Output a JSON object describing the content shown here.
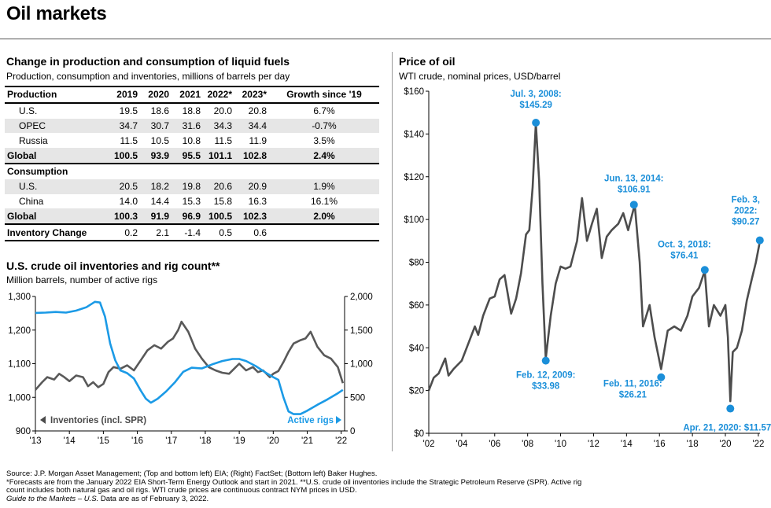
{
  "page": {
    "title": "Oil markets",
    "page_number": ""
  },
  "table_section": {
    "title": "Change in production and consumption of liquid fuels",
    "subtitle": "Production, consumption and inventories, millions of barrels per day",
    "header": [
      "Production",
      "2019",
      "2020",
      "2021",
      "2022*",
      "2023*",
      "Growth since '19"
    ],
    "production_rows": [
      {
        "label": "U.S.",
        "values": [
          "19.5",
          "18.6",
          "18.8",
          "20.0",
          "20.8"
        ],
        "growth": "6.7%"
      },
      {
        "label": "OPEC",
        "values": [
          "34.7",
          "30.7",
          "31.6",
          "34.3",
          "34.4"
        ],
        "growth": "-0.7%"
      },
      {
        "label": "Russia",
        "values": [
          "11.5",
          "10.5",
          "10.8",
          "11.5",
          "11.9"
        ],
        "growth": "3.5%"
      }
    ],
    "production_global": {
      "label": "Global",
      "values": [
        "100.5",
        "93.9",
        "95.5",
        "101.1",
        "102.8"
      ],
      "growth": "2.4%"
    },
    "consumption_label": "Consumption",
    "consumption_rows": [
      {
        "label": "U.S.",
        "values": [
          "20.5",
          "18.2",
          "19.8",
          "20.6",
          "20.9"
        ],
        "growth": "1.9%"
      },
      {
        "label": "China",
        "values": [
          "14.0",
          "14.4",
          "15.3",
          "15.8",
          "16.3"
        ],
        "growth": "16.1%"
      }
    ],
    "consumption_global": {
      "label": "Global",
      "values": [
        "100.3",
        "91.9",
        "96.9",
        "100.5",
        "102.3"
      ],
      "growth": "2.0%"
    },
    "inventory_row": {
      "label": "Inventory Change",
      "values": [
        "0.2",
        "2.1",
        "-1.4",
        "0.5",
        "0.6"
      ],
      "growth": ""
    }
  },
  "inventories_section": {
    "title": "U.S. crude oil inventories and rig count**",
    "subtitle": "Million barrels, number of active rigs",
    "legend_inventories": "Inventories (incl. SPR)",
    "legend_rigs": "Active rigs"
  },
  "price_section": {
    "title": "Price of oil",
    "subtitle": "WTI crude, nominal prices, USD/barrel"
  },
  "colors": {
    "inventories": "#595959",
    "rigs": "#1b9ae6",
    "price": "#4d4d4d",
    "annotation": "#1b8fd9"
  },
  "footer": {
    "line1": "Source: J.P. Morgan Asset Management; (Top and bottom left) EIA; (Right) FactSet; (Bottom left) Baker Hughes.",
    "line2": "*Forecasts are from the January 2022 EIA Short-Term Energy Outlook and start in 2021. **U.S. crude oil inventories include the Strategic Petroleum Reserve (SPR). Active rig",
    "line3": "count includes both natural gas and oil rigs. WTI crude prices are continuous contract NYM prices in USD.",
    "line4_italic": "Guide to the Markets – U.S.",
    "line4_rest": " Data are as of February 3, 2022."
  },
  "chart_data": [
    {
      "type": "line",
      "title": "U.S. crude oil inventories and rig count**",
      "subtitle": "Million barrels, number of active rigs",
      "x_tick_labels": [
        "'13",
        "'14",
        "'15",
        "'16",
        "'17",
        "'18",
        "'19",
        "'20",
        "'21",
        "'22"
      ],
      "x_range": [
        2013.0,
        2022.1
      ],
      "y_left": {
        "range": [
          900,
          1300
        ],
        "ticks": [
          900,
          1000,
          1100,
          1200,
          1300
        ],
        "tick_labels": [
          "900",
          "1,000",
          "1,100",
          "1,200",
          "1,300"
        ]
      },
      "y_right": {
        "range": [
          0,
          2000
        ],
        "ticks": [
          0,
          500,
          1000,
          1500,
          2000
        ],
        "tick_labels": [
          "0",
          "500",
          "1,000",
          "1,500",
          "2,000"
        ]
      },
      "series": [
        {
          "name": "Inventories (incl. SPR)",
          "axis": "left",
          "x": [
            2013.0,
            2013.2,
            2013.35,
            2013.55,
            2013.7,
            2013.85,
            2014.0,
            2014.2,
            2014.4,
            2014.55,
            2014.7,
            2014.85,
            2015.0,
            2015.15,
            2015.3,
            2015.5,
            2015.7,
            2015.9,
            2016.1,
            2016.3,
            2016.5,
            2016.7,
            2016.9,
            2017.05,
            2017.2,
            2017.3,
            2017.5,
            2017.7,
            2017.9,
            2018.1,
            2018.3,
            2018.5,
            2018.7,
            2018.85,
            2019.0,
            2019.2,
            2019.4,
            2019.55,
            2019.7,
            2019.9,
            2020.0,
            2020.15,
            2020.3,
            2020.45,
            2020.6,
            2020.8,
            2020.95,
            2021.1,
            2021.3,
            2021.5,
            2021.7,
            2021.9,
            2022.05
          ],
          "values": [
            1022,
            1045,
            1060,
            1053,
            1070,
            1060,
            1048,
            1065,
            1060,
            1033,
            1045,
            1030,
            1040,
            1075,
            1090,
            1085,
            1095,
            1080,
            1110,
            1140,
            1155,
            1145,
            1165,
            1175,
            1200,
            1225,
            1195,
            1145,
            1115,
            1090,
            1080,
            1073,
            1070,
            1085,
            1100,
            1080,
            1090,
            1075,
            1080,
            1060,
            1070,
            1078,
            1105,
            1135,
            1160,
            1170,
            1175,
            1195,
            1150,
            1125,
            1115,
            1090,
            1042
          ]
        },
        {
          "name": "Active rigs",
          "axis": "right",
          "x": [
            2013.0,
            2013.3,
            2013.6,
            2013.9,
            2014.2,
            2014.5,
            2014.75,
            2014.9,
            2015.05,
            2015.2,
            2015.35,
            2015.5,
            2015.7,
            2015.9,
            2016.1,
            2016.25,
            2016.4,
            2016.6,
            2016.85,
            2017.1,
            2017.35,
            2017.6,
            2017.9,
            2018.2,
            2018.5,
            2018.8,
            2019.0,
            2019.2,
            2019.5,
            2019.8,
            2020.0,
            2020.15,
            2020.3,
            2020.45,
            2020.6,
            2020.8,
            2021.0,
            2021.3,
            2021.6,
            2021.9,
            2022.05
          ],
          "values": [
            1755,
            1760,
            1770,
            1760,
            1790,
            1840,
            1920,
            1910,
            1700,
            1300,
            1050,
            900,
            860,
            780,
            600,
            480,
            420,
            480,
            590,
            720,
            880,
            940,
            930,
            990,
            1040,
            1070,
            1070,
            1040,
            960,
            860,
            800,
            760,
            500,
            290,
            250,
            250,
            300,
            390,
            470,
            560,
            610
          ]
        }
      ]
    },
    {
      "type": "line",
      "title": "Price of oil",
      "subtitle": "WTI crude, nominal prices, USD/barrel",
      "x_tick_labels": [
        "'02",
        "'04",
        "'06",
        "'08",
        "'10",
        "'12",
        "'14",
        "'16",
        "'18",
        "'20",
        "'22"
      ],
      "x_range": [
        2002.0,
        2022.1
      ],
      "y": {
        "range": [
          0,
          160
        ],
        "ticks": [
          0,
          20,
          40,
          60,
          80,
          100,
          120,
          140,
          160
        ],
        "tick_labels": [
          "$0",
          "$20",
          "$40",
          "$60",
          "$80",
          "$100",
          "$120",
          "$140",
          "$160"
        ]
      },
      "series": [
        {
          "name": "WTI crude",
          "x": [
            2002.0,
            2002.3,
            2002.6,
            2003.0,
            2003.2,
            2003.5,
            2004.0,
            2004.4,
            2004.8,
            2005.0,
            2005.3,
            2005.7,
            2006.0,
            2006.3,
            2006.6,
            2007.0,
            2007.3,
            2007.6,
            2007.9,
            2008.1,
            2008.3,
            2008.5,
            2008.7,
            2008.9,
            2009.1,
            2009.4,
            2009.7,
            2010.0,
            2010.3,
            2010.6,
            2011.0,
            2011.3,
            2011.6,
            2011.9,
            2012.2,
            2012.5,
            2012.8,
            2013.1,
            2013.5,
            2013.8,
            2014.1,
            2014.5,
            2014.8,
            2015.0,
            2015.4,
            2015.7,
            2016.1,
            2016.5,
            2016.9,
            2017.3,
            2017.7,
            2018.0,
            2018.4,
            2018.75,
            2019.0,
            2019.3,
            2019.7,
            2020.0,
            2020.15,
            2020.3,
            2020.45,
            2020.7,
            2021.0,
            2021.3,
            2021.6,
            2021.85,
            2022.1
          ],
          "values": [
            20,
            26,
            28,
            35,
            27,
            30,
            34,
            42,
            50,
            46,
            55,
            63,
            64,
            72,
            74,
            56,
            63,
            75,
            93,
            95,
            115,
            145,
            118,
            70,
            35,
            55,
            70,
            78,
            77,
            78,
            90,
            110,
            90,
            98,
            105,
            82,
            92,
            95,
            98,
            103,
            95,
            107,
            80,
            50,
            60,
            45,
            30,
            48,
            50,
            48,
            55,
            64,
            68,
            76,
            50,
            60,
            55,
            60,
            45,
            15,
            38,
            40,
            48,
            62,
            72,
            80,
            90
          ]
        }
      ],
      "annotations": [
        {
          "label_lines": [
            "Jul. 3, 2008:",
            "$145.29"
          ],
          "x": 2008.5,
          "y": 145.29
        },
        {
          "label_lines": [
            "Feb. 12, 2009:",
            "$33.98"
          ],
          "x": 2009.1,
          "y": 33.98
        },
        {
          "label_lines": [
            "Jun. 13, 2014:",
            "$106.91"
          ],
          "x": 2014.45,
          "y": 106.91
        },
        {
          "label_lines": [
            "Feb. 11, 2016:",
            "$26.21"
          ],
          "x": 2016.1,
          "y": 26.21
        },
        {
          "label_lines": [
            "Oct. 3, 2018:",
            "$76.41"
          ],
          "x": 2018.75,
          "y": 76.41
        },
        {
          "label_lines": [
            "Apr. 21, 2020: $11.57"
          ],
          "x": 2020.3,
          "y": 11.57
        },
        {
          "label_lines": [
            "Feb. 3,",
            "2022:",
            "$90.27"
          ],
          "x": 2022.09,
          "y": 90.27
        }
      ]
    }
  ]
}
